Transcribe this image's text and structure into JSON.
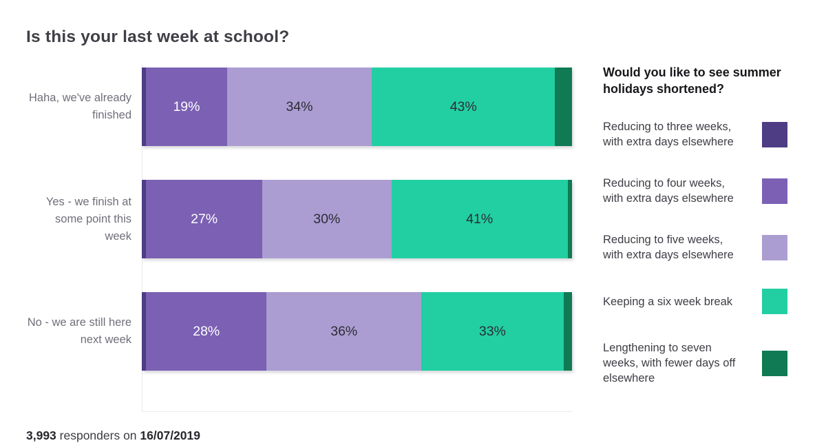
{
  "title": "Is this your last week at school?",
  "legend": {
    "title": "Would you like to see summer holidays shortened?",
    "items": [
      {
        "label": "Reducing to three weeks, with extra days elsewhere",
        "color": "#4e3c84"
      },
      {
        "label": "Reducing to four weeks, with extra days elsewhere",
        "color": "#7b60b4"
      },
      {
        "label": "Reducing to five weeks, with extra days elsewhere",
        "color": "#ab9dd2"
      },
      {
        "label": "Keeping a six week break",
        "color": "#21cfa2"
      },
      {
        "label": "Lengthening to seven weeks, with fewer days off elsewhere",
        "color": "#0f7a53"
      }
    ]
  },
  "footer": {
    "count": "3,993",
    "connector": " responders on ",
    "date": "16/07/2019"
  },
  "chart_data": {
    "type": "bar",
    "orientation": "horizontal",
    "stacked": true,
    "units": "percent",
    "grid": false,
    "legend_position": "right",
    "title": "Is this your last week at school?",
    "categories": [
      "Haha, we've already finished",
      "Yes - we finish at some point this week",
      "No - we are still here next week"
    ],
    "series": [
      {
        "name": "Reducing to three weeks, with extra days elsewhere",
        "color": "#4e3c84",
        "values": [
          1,
          1,
          1
        ],
        "labels": [
          "",
          "",
          ""
        ],
        "approx_unlabeled": true,
        "show_labels": false,
        "label_color": "#ffffff"
      },
      {
        "name": "Reducing to four weeks, with extra days elsewhere",
        "color": "#7b60b4",
        "values": [
          19,
          27,
          28
        ],
        "labels": [
          "19%",
          "27%",
          "28%"
        ],
        "show_labels": true,
        "label_color": "#ffffff"
      },
      {
        "name": "Reducing to five weeks, with extra days elsewhere",
        "color": "#ab9dd2",
        "values": [
          34,
          30,
          36
        ],
        "labels": [
          "34%",
          "30%",
          "36%"
        ],
        "show_labels": true,
        "label_color": "#2c2c34"
      },
      {
        "name": "Keeping a six week break",
        "color": "#21cfa2",
        "values": [
          43,
          41,
          33
        ],
        "labels": [
          "43%",
          "41%",
          "33%"
        ],
        "show_labels": true,
        "label_color": "#2c2c34"
      },
      {
        "name": "Lengthening to seven weeks, with fewer days off elsewhere",
        "color": "#0f7a53",
        "values": [
          4,
          1,
          2
        ],
        "labels": [
          "",
          "",
          ""
        ],
        "approx_unlabeled": true,
        "show_labels": false,
        "label_color": "#ffffff"
      }
    ]
  }
}
